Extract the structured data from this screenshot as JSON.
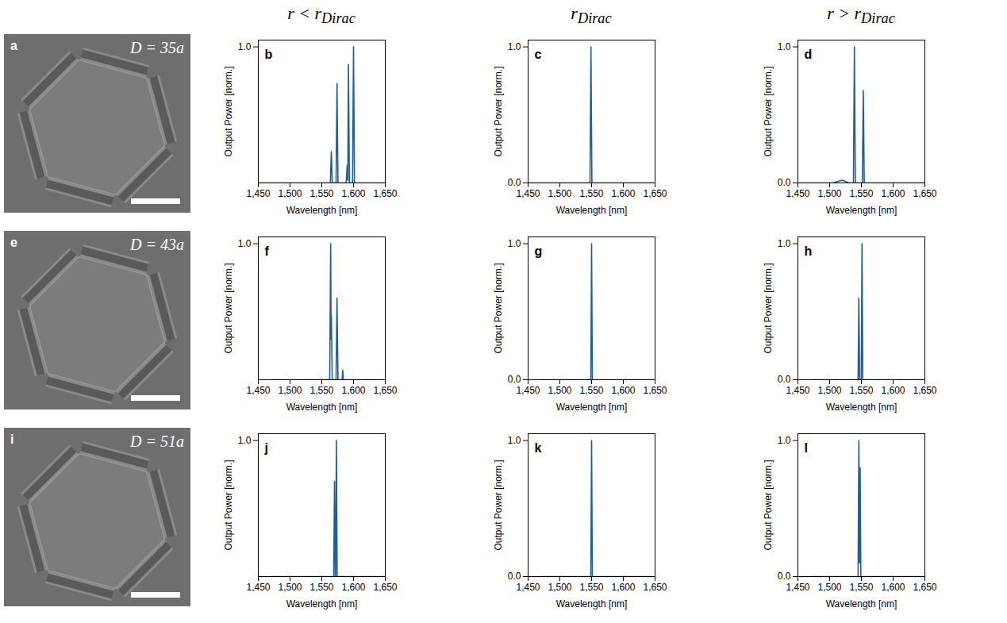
{
  "columns": [
    {
      "text": "r < r",
      "subscript": "Dirac"
    },
    {
      "text": "r",
      "subscript": "Dirac"
    },
    {
      "text": "r > r",
      "subscript": "Dirac"
    }
  ],
  "images": [
    {
      "letter": "a",
      "label": "D = 35a"
    },
    {
      "letter": "e",
      "label": "D = 43a"
    },
    {
      "letter": "i",
      "label": "D = 51a"
    }
  ],
  "chart_data": [
    {
      "type": "line",
      "letter": "b",
      "x_label": "Wavelength [nm]",
      "y_label": "Output Power [norm.]",
      "color": "#1f5e9e",
      "xlim": [
        1450,
        1650
      ],
      "xticks": [
        1450,
        1500,
        1550,
        1600,
        1650
      ],
      "ylim": [
        0,
        1.05
      ],
      "yticks": [
        1
      ],
      "x": [
        1450,
        1563.5,
        1565,
        1566.5,
        1572.5,
        1574,
        1575.5,
        1588.5,
        1590,
        1591,
        1592,
        1593.5,
        1598.5,
        1600,
        1601.5,
        1650
      ],
      "values": [
        0,
        0,
        0.23,
        0,
        0,
        0.73,
        0,
        0,
        0.13,
        0.02,
        0.87,
        0,
        0,
        1.0,
        0,
        0
      ]
    },
    {
      "type": "line",
      "letter": "c",
      "x_label": "Wavelength [nm]",
      "y_label": "Output Power [norm.]",
      "color": "#1f5e9e",
      "xlim": [
        1450,
        1650
      ],
      "xticks": [
        1450,
        1500,
        1550,
        1600,
        1650
      ],
      "ylim": [
        0,
        1.05
      ],
      "yticks": [
        0,
        1
      ],
      "x": [
        1450,
        1547.5,
        1549,
        1550.5,
        1650
      ],
      "values": [
        0,
        0,
        1.0,
        0,
        0
      ]
    },
    {
      "type": "line",
      "letter": "d",
      "x_label": "Wavelength [nm]",
      "y_label": "Output Power [norm.]",
      "color": "#1f5e9e",
      "xlim": [
        1450,
        1650
      ],
      "xticks": [
        1450,
        1500,
        1550,
        1600,
        1650
      ],
      "ylim": [
        0,
        1.05
      ],
      "yticks": [
        0,
        1
      ],
      "x": [
        1450,
        1505,
        1520,
        1530,
        1537.5,
        1539,
        1540.5,
        1551.5,
        1553,
        1554.5,
        1650
      ],
      "values": [
        0,
        0,
        0.02,
        0,
        0,
        1.0,
        0,
        0,
        0.68,
        0,
        0
      ]
    },
    {
      "type": "line",
      "letter": "f",
      "x_label": "Wavelength [nm]",
      "y_label": "Output Power [norm.]",
      "color": "#1f5e9e",
      "xlim": [
        1450,
        1650
      ],
      "xticks": [
        1450,
        1500,
        1550,
        1600,
        1650
      ],
      "ylim": [
        0,
        1.05
      ],
      "yticks": [
        1
      ],
      "x": [
        1470,
        1562.5,
        1564,
        1564.7,
        1565,
        1566.5,
        1572.5,
        1574,
        1575.5,
        1582,
        1583,
        1584,
        1650
      ],
      "values": [
        0,
        0,
        1.0,
        0.3,
        0.48,
        0,
        0,
        0.6,
        0,
        0,
        0.07,
        0,
        0
      ]
    },
    {
      "type": "line",
      "letter": "g",
      "x_label": "Wavelength [nm]",
      "y_label": "Output Power [norm.]",
      "color": "#1f5e9e",
      "xlim": [
        1450,
        1650
      ],
      "xticks": [
        1450,
        1500,
        1550,
        1600,
        1650
      ],
      "ylim": [
        0,
        1.05
      ],
      "yticks": [
        0,
        1
      ],
      "x": [
        1470,
        1548.8,
        1550,
        1551.2,
        1650
      ],
      "values": [
        0,
        0,
        1.0,
        0,
        0
      ]
    },
    {
      "type": "line",
      "letter": "h",
      "x_label": "Wavelength [nm]",
      "y_label": "Output Power [norm.]",
      "color": "#1f5e9e",
      "xlim": [
        1450,
        1650
      ],
      "xticks": [
        1450,
        1500,
        1550,
        1600,
        1650
      ],
      "ylim": [
        0,
        1.05
      ],
      "yticks": [
        0,
        1
      ],
      "x": [
        1470,
        1544.8,
        1546,
        1547.2,
        1549.8,
        1551,
        1552.2,
        1650
      ],
      "values": [
        0,
        0,
        0.6,
        0,
        0,
        1.0,
        0,
        0
      ]
    },
    {
      "type": "line",
      "letter": "j",
      "x_label": "Wavelength [nm]",
      "y_label": "Output Power [norm.]",
      "color": "#1f5e9e",
      "xlim": [
        1450,
        1650
      ],
      "xticks": [
        1450,
        1500,
        1550,
        1600,
        1650
      ],
      "ylim": [
        0,
        1.05
      ],
      "yticks": [
        1
      ],
      "x": [
        1470,
        1568.8,
        1570,
        1571.2,
        1571.8,
        1573,
        1574.2,
        1650
      ],
      "values": [
        0,
        0,
        0.7,
        0,
        0,
        1.0,
        0,
        0
      ]
    },
    {
      "type": "line",
      "letter": "k",
      "x_label": "Wavelength [nm]",
      "y_label": "Output Power [norm.]",
      "color": "#1f5e9e",
      "xlim": [
        1450,
        1650
      ],
      "xticks": [
        1450,
        1500,
        1550,
        1600,
        1650
      ],
      "ylim": [
        0,
        1.05
      ],
      "yticks": [
        0,
        1
      ],
      "x": [
        1470,
        1548.8,
        1550,
        1551.2,
        1650
      ],
      "values": [
        0,
        0,
        1.0,
        0,
        0
      ]
    },
    {
      "type": "line",
      "letter": "l",
      "x_label": "Wavelength [nm]",
      "y_label": "Output Power [norm.]",
      "color": "#1f5e9e",
      "xlim": [
        1450,
        1650
      ],
      "xticks": [
        1450,
        1500,
        1550,
        1600,
        1650
      ],
      "ylim": [
        0,
        1.05
      ],
      "yticks": [
        0,
        1
      ],
      "x": [
        1470,
        1544.8,
        1546,
        1547,
        1548,
        1549.2,
        1650
      ],
      "values": [
        0,
        0,
        1.0,
        0.1,
        0.8,
        0,
        0
      ]
    }
  ]
}
